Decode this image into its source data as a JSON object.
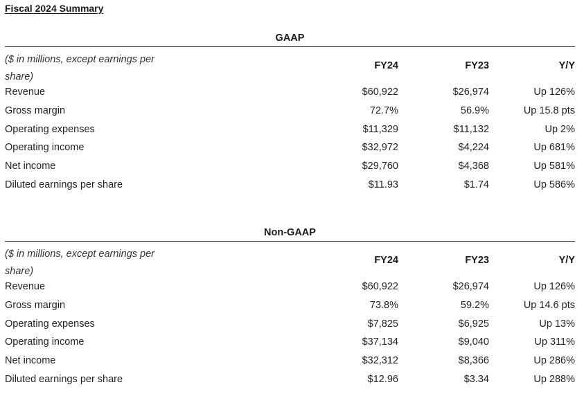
{
  "page_title": "Fiscal 2024 Summary",
  "sections": [
    {
      "header": "GAAP",
      "unit_note": "($ in millions, except earnings per share)",
      "columns": [
        "FY24",
        "FY23",
        "Y/Y"
      ],
      "rows": [
        {
          "label": "Revenue",
          "fy24": "$60,922",
          "fy23": "$26,974",
          "yy": "Up 126%"
        },
        {
          "label": "Gross margin",
          "fy24": "72.7%",
          "fy23": "56.9%",
          "yy": "Up 15.8 pts"
        },
        {
          "label": "Operating expenses",
          "fy24": "$11,329",
          "fy23": "$11,132",
          "yy": "Up 2%"
        },
        {
          "label": "Operating income",
          "fy24": "$32,972",
          "fy23": "$4,224",
          "yy": "Up 681%"
        },
        {
          "label": "Net income",
          "fy24": "$29,760",
          "fy23": "$4,368",
          "yy": "Up 581%"
        },
        {
          "label": "Diluted earnings per share",
          "fy24": "$11.93",
          "fy23": "$1.74",
          "yy": "Up 586%"
        }
      ]
    },
    {
      "header": "Non-GAAP",
      "unit_note": "($ in millions, except earnings per share)",
      "columns": [
        "FY24",
        "FY23",
        "Y/Y"
      ],
      "rows": [
        {
          "label": "Revenue",
          "fy24": "$60,922",
          "fy23": "$26,974",
          "yy": "Up 126%"
        },
        {
          "label": "Gross margin",
          "fy24": "73.8%",
          "fy23": "59.2%",
          "yy": "Up 14.6 pts"
        },
        {
          "label": "Operating expenses",
          "fy24": "$7,825",
          "fy23": "$6,925",
          "yy": "Up 13%"
        },
        {
          "label": "Operating income",
          "fy24": "$37,134",
          "fy23": "$9,040",
          "yy": "Up 311%"
        },
        {
          "label": "Net income",
          "fy24": "$32,312",
          "fy23": "$8,366",
          "yy": "Up 286%"
        },
        {
          "label": "Diluted earnings per share",
          "fy24": "$12.96",
          "fy23": "$3.34",
          "yy": "Up 288%"
        }
      ]
    }
  ]
}
